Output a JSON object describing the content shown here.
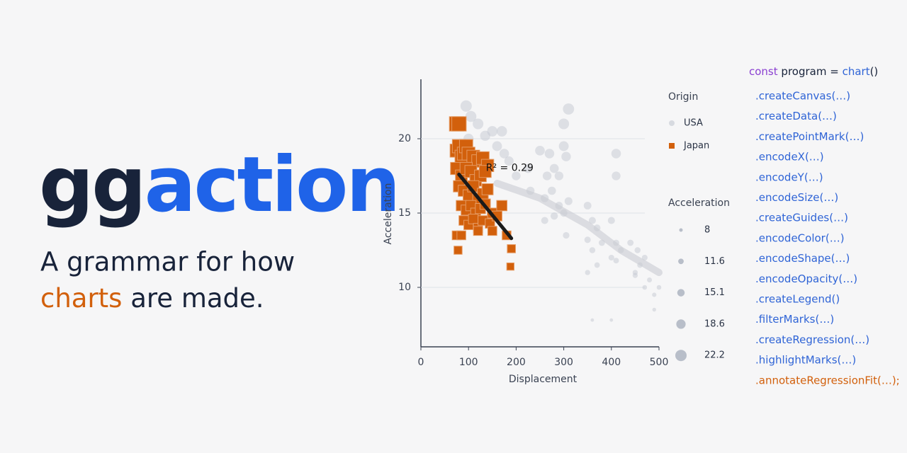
{
  "logo": {
    "gg": "gg",
    "action": "action"
  },
  "tagline": {
    "line1": "A grammar for how",
    "highlight": "charts",
    "rest": "are made."
  },
  "chart_data": {
    "type": "scatter",
    "x_label": "Displacement",
    "y_label": "Acceleration",
    "xlim": [
      0,
      500
    ],
    "xticks": [
      0,
      100,
      200,
      300,
      400,
      500
    ],
    "ylim": [
      6,
      24
    ],
    "yticks": [
      10,
      15,
      20
    ],
    "grid": true,
    "legend_title": "Origin",
    "size_legend": {
      "title": "Acceleration",
      "values": [
        8,
        11.6,
        15.1,
        18.6,
        22.2
      ]
    },
    "series": [
      {
        "name": "USA",
        "color": "#c3c8d1",
        "shape": "circle",
        "x": [
          95,
          105,
          120,
          135,
          150,
          170,
          100,
          160,
          175,
          185,
          200,
          230,
          225,
          250,
          265,
          270,
          280,
          290,
          300,
          310,
          300,
          305,
          260,
          275,
          290,
          300,
          310,
          260,
          280,
          305,
          350,
          360,
          370,
          350,
          380,
          400,
          410,
          420,
          400,
          410,
          440,
          455,
          460,
          450,
          470,
          480,
          490,
          500,
          360,
          370,
          350,
          360,
          400,
          490,
          450,
          410,
          410,
          470
        ],
        "y": [
          22.2,
          21.5,
          21,
          20.2,
          20.5,
          20.5,
          20,
          19.5,
          19,
          18.5,
          17.5,
          16.5,
          18,
          19.2,
          17.5,
          19,
          18,
          17.5,
          21,
          22,
          19.5,
          18.8,
          16,
          16.5,
          15.5,
          15,
          15.8,
          14.5,
          14.8,
          13.5,
          15.5,
          14.5,
          14,
          13.2,
          13,
          14.5,
          13,
          12.5,
          12,
          11.8,
          13,
          12.5,
          11.5,
          11,
          10,
          10.5,
          9.5,
          10,
          12.5,
          11.5,
          11,
          7.8,
          7.8,
          8.5,
          10.8,
          19,
          17.5,
          12
        ]
      },
      {
        "name": "Japan",
        "color": "#d2600c",
        "shape": "square",
        "x": [
          75,
          80,
          75,
          80,
          85,
          90,
          95,
          100,
          110,
          120,
          130,
          140,
          75,
          85,
          95,
          105,
          115,
          125,
          135,
          80,
          90,
          100,
          110,
          120,
          130,
          140,
          85,
          95,
          105,
          115,
          125,
          135,
          150,
          170,
          90,
          100,
          110,
          120,
          130,
          145,
          160,
          75,
          85,
          120,
          150,
          180,
          78,
          190,
          188
        ],
        "y": [
          21,
          21,
          19.2,
          19.5,
          18.8,
          19,
          19.5,
          19,
          18.8,
          18.5,
          18.7,
          18.2,
          18,
          17.5,
          18,
          17.8,
          17.2,
          17.5,
          17.8,
          16.8,
          16.5,
          16.2,
          16.8,
          16,
          16.3,
          16.6,
          15.5,
          15.2,
          15.5,
          15,
          15.3,
          15.6,
          15,
          15.5,
          14.5,
          14.2,
          14.6,
          14,
          14.5,
          14.3,
          14.8,
          13.5,
          13.5,
          13.8,
          13.8,
          13.5,
          12.5,
          12.6,
          11.4
        ]
      }
    ],
    "fits": [
      {
        "color": "#c9ccd2",
        "x": [
          160,
          250,
          350,
          420,
          500
        ],
        "y": [
          17,
          16,
          14.2,
          12.5,
          11
        ]
      },
      {
        "color": "#1a1a1a",
        "x": [
          80,
          190
        ],
        "y": [
          17.6,
          13.3
        ]
      }
    ],
    "annotation": "R² = 0.29"
  },
  "code": {
    "keyword": "const",
    "name": "program =",
    "call": "chart",
    "tail": "()",
    "lines": [
      ".createCanvas(…)",
      ".createData(…)",
      ".createPointMark(…)",
      ".encodeX(…)",
      ".encodeY(…)",
      ".encodeSize(…)",
      ".createGuides(…)",
      ".encodeColor(…)",
      ".encodeShape(…)",
      ".encodeOpacity(…)",
      ".createLegend()",
      ".filterMarks(…)",
      ".createRegression(…)",
      ".highlightMarks(…)",
      ".annotateRegressionFit(…);"
    ]
  }
}
